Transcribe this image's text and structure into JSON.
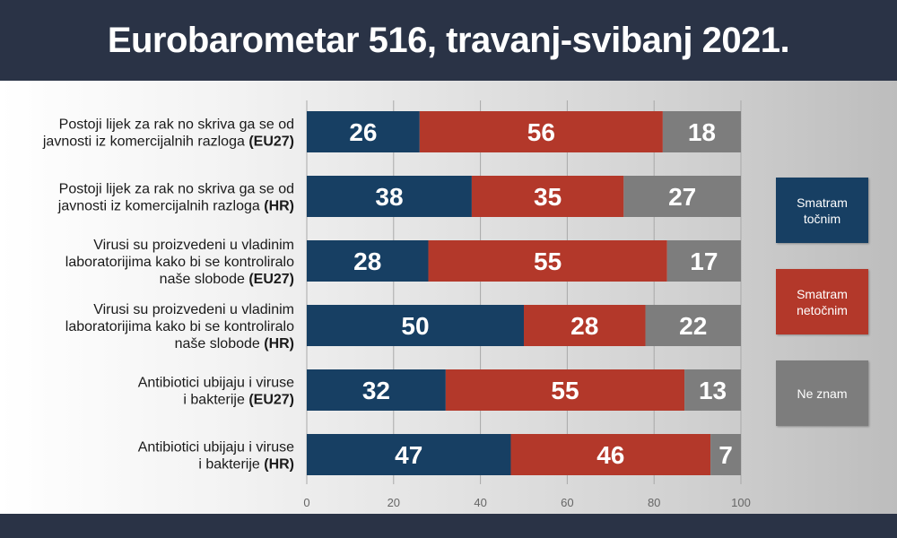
{
  "header": {
    "title": "Eurobarometar 516, travanj-svibanj 2021."
  },
  "colors": {
    "header_bg": "#2a3346",
    "series_tocnim": "#173f63",
    "series_netocnim": "#b3382a",
    "series_ne_znam": "#7d7d7d"
  },
  "chart_data": {
    "type": "bar",
    "orientation": "horizontal",
    "stacked": true,
    "title": "Eurobarometar 516, travanj-svibanj 2021.",
    "xlim": [
      0,
      100
    ],
    "xticks": [
      "0",
      "20",
      "40",
      "60",
      "80",
      "100"
    ],
    "grid": true,
    "legend_position": "right",
    "categories": [
      {
        "lines": [
          "Postoji lijek za rak no skriva ga se od",
          "javnosti iz komercijalnih razloga"
        ],
        "tag": "(EU27)"
      },
      {
        "lines": [
          "Postoji lijek za rak no skriva ga se od",
          "javnosti iz komercijalnih razloga"
        ],
        "tag": "(HR)"
      },
      {
        "lines": [
          "Virusi su proizvedeni u vladinim",
          "laboratorijima kako bi se kontroliralo",
          "naše slobode"
        ],
        "tag": "(EU27)"
      },
      {
        "lines": [
          "Virusi su proizvedeni u vladinim",
          "laboratorijima kako bi se kontroliralo",
          "naše slobode"
        ],
        "tag": "(HR)"
      },
      {
        "lines": [
          "Antibiotici ubijaju i viruse",
          "i bakterije"
        ],
        "tag": "(EU27)"
      },
      {
        "lines": [
          "Antibiotici ubijaju i viruse",
          "i bakterije"
        ],
        "tag": "(HR)"
      }
    ],
    "series": [
      {
        "name": "Smatram točnim",
        "legend_lines": [
          "Smatram",
          "točnim"
        ],
        "color": "#173f63",
        "values": [
          26,
          38,
          28,
          50,
          32,
          47
        ]
      },
      {
        "name": "Smatram netočnim",
        "legend_lines": [
          "Smatram",
          "netočnim"
        ],
        "color": "#b3382a",
        "values": [
          56,
          35,
          55,
          28,
          55,
          46
        ]
      },
      {
        "name": "Ne znam",
        "legend_lines": [
          "Ne znam"
        ],
        "color": "#7d7d7d",
        "values": [
          18,
          27,
          17,
          22,
          13,
          7
        ]
      }
    ]
  }
}
